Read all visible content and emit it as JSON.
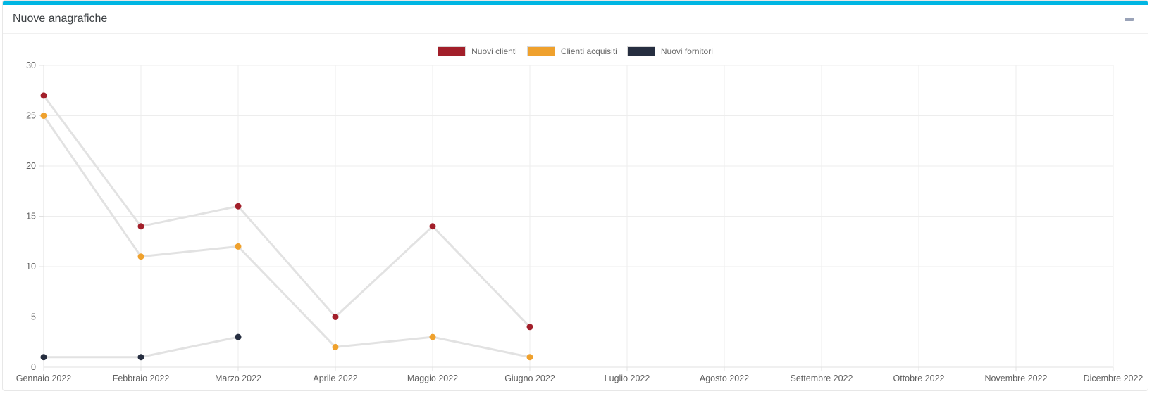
{
  "panel": {
    "title": "Nuove anagrafiche",
    "minimize_icon": "minus-icon"
  },
  "colors": {
    "accent_top": "#00b6e3",
    "series_red": "#a21f2a",
    "series_orange": "#efa12d",
    "series_navy": "#262e40",
    "connector_gray": "#e2e2e2",
    "grid": "#ededed",
    "axis": "#e0e0e0",
    "tick_text": "#606060",
    "title_text": "#3c4043",
    "minimize_icon_color": "#9aa3b8"
  },
  "chart_data": {
    "type": "line",
    "title": "Nuove anagrafiche",
    "categories": [
      "Gennaio 2022",
      "Febbraio 2022",
      "Marzo 2022",
      "Aprile 2022",
      "Maggio 2022",
      "Giugno 2022",
      "Luglio 2022",
      "Agosto 2022",
      "Settembre 2022",
      "Ottobre 2022",
      "Novembre 2022",
      "Dicembre 2022"
    ],
    "series": [
      {
        "name": "Nuovi clienti",
        "color": "#a21f2a",
        "values": [
          27,
          14,
          16,
          5,
          14,
          4,
          null,
          null,
          null,
          null,
          null,
          null
        ]
      },
      {
        "name": "Clienti acquisiti",
        "color": "#efa12d",
        "values": [
          25,
          11,
          12,
          2,
          3,
          1,
          null,
          null,
          null,
          null,
          null,
          null
        ]
      },
      {
        "name": "Nuovi fornitori",
        "color": "#262e40",
        "values": [
          1,
          1,
          3,
          null,
          null,
          null,
          null,
          null,
          null,
          null,
          null,
          null
        ]
      }
    ],
    "xlabel": "",
    "ylabel": "",
    "ylim": [
      0,
      30
    ],
    "yticks": [
      0,
      5,
      10,
      15,
      20,
      25,
      30
    ],
    "grid": true,
    "legend_position": "top-center",
    "connector_color": "#e2e2e2",
    "marker_radius": 4.5
  }
}
